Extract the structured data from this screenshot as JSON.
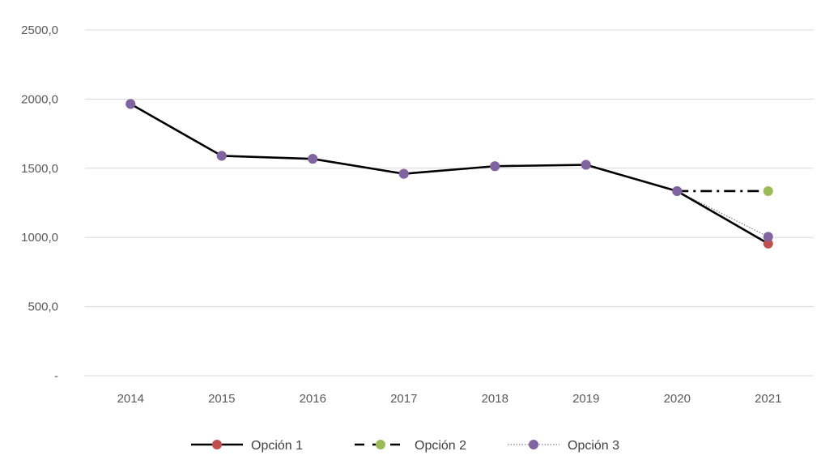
{
  "chart_data": {
    "type": "line",
    "categories": [
      "2014",
      "2015",
      "2016",
      "2017",
      "2018",
      "2019",
      "2020",
      "2021"
    ],
    "ylim": [
      0,
      2500
    ],
    "yticks": [
      0,
      500,
      1000,
      1500,
      2000,
      2500
    ],
    "ytick_labels": [
      "-",
      "500,0",
      "1000,0",
      "1500,0",
      "2000,0",
      "2500,0"
    ],
    "grid": true,
    "legend_position": "bottom",
    "series": [
      {
        "name": "Opción 1",
        "values": [
          1965,
          1590,
          1568,
          1460,
          1515,
          1525,
          1335,
          955
        ],
        "line_color": "#000000",
        "marker_color": "#C0504D",
        "line_style": "solid"
      },
      {
        "name": "Opción 2",
        "values": [
          null,
          null,
          null,
          null,
          null,
          null,
          1335,
          1335
        ],
        "line_color": "#000000",
        "marker_color": "#9BBB59",
        "line_style": "dash-dot"
      },
      {
        "name": "Opción 3",
        "values": [
          1965,
          1590,
          1568,
          1460,
          1515,
          1525,
          1335,
          1005
        ],
        "line_color": "#7F7F7F",
        "marker_color": "#8064A2",
        "line_style": "dotted"
      }
    ]
  }
}
